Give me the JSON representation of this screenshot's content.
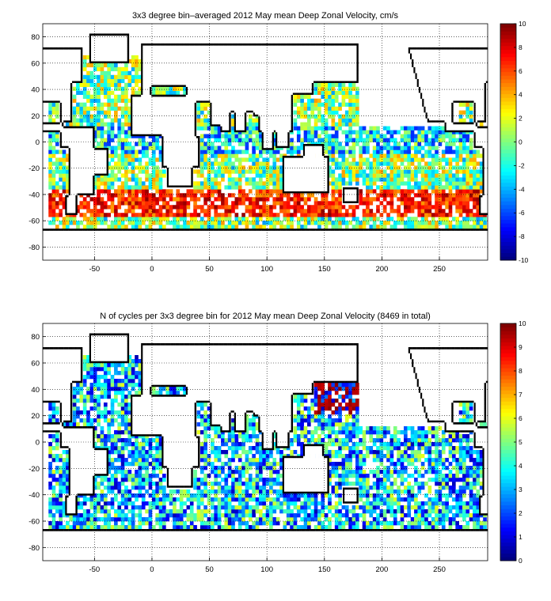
{
  "chart_data": [
    {
      "type": "heatmap",
      "title": "3x3 degree bin–averaged 2012 May mean Deep Zonal Velocity, cm/s",
      "xlabel": "",
      "ylabel": "",
      "xlim": [
        -95,
        292
      ],
      "ylim": [
        -90,
        90
      ],
      "x_ticks": [
        -50,
        0,
        50,
        100,
        150,
        200,
        250
      ],
      "y_ticks": [
        -80,
        -60,
        -40,
        -20,
        0,
        20,
        40,
        60,
        80
      ],
      "grid": true,
      "colorbar": {
        "min": -10,
        "max": 10,
        "ticks": [
          -10,
          -8,
          -6,
          -4,
          -2,
          0,
          2,
          4,
          6,
          8,
          10
        ],
        "colormap": "jet",
        "placement": "right"
      },
      "bin_size_deg": 3,
      "values_note": "bin values shown as colored cells over ocean areas"
    },
    {
      "type": "heatmap",
      "title": "N of cycles per 3x3 degree bin for 2012 May mean Deep Zonal Velocity (8469 in total)",
      "xlabel": "",
      "ylabel": "",
      "xlim": [
        -95,
        292
      ],
      "ylim": [
        -90,
        90
      ],
      "x_ticks": [
        -50,
        0,
        50,
        100,
        150,
        200,
        250
      ],
      "y_ticks": [
        -80,
        -60,
        -40,
        -20,
        0,
        20,
        40,
        60,
        80
      ],
      "grid": true,
      "colorbar": {
        "min": 0,
        "max": 10,
        "ticks": [
          0,
          1,
          2,
          3,
          4,
          5,
          6,
          7,
          8,
          9,
          10
        ],
        "colormap": "jet",
        "placement": "right"
      },
      "bin_size_deg": 3,
      "total": 8469
    }
  ]
}
